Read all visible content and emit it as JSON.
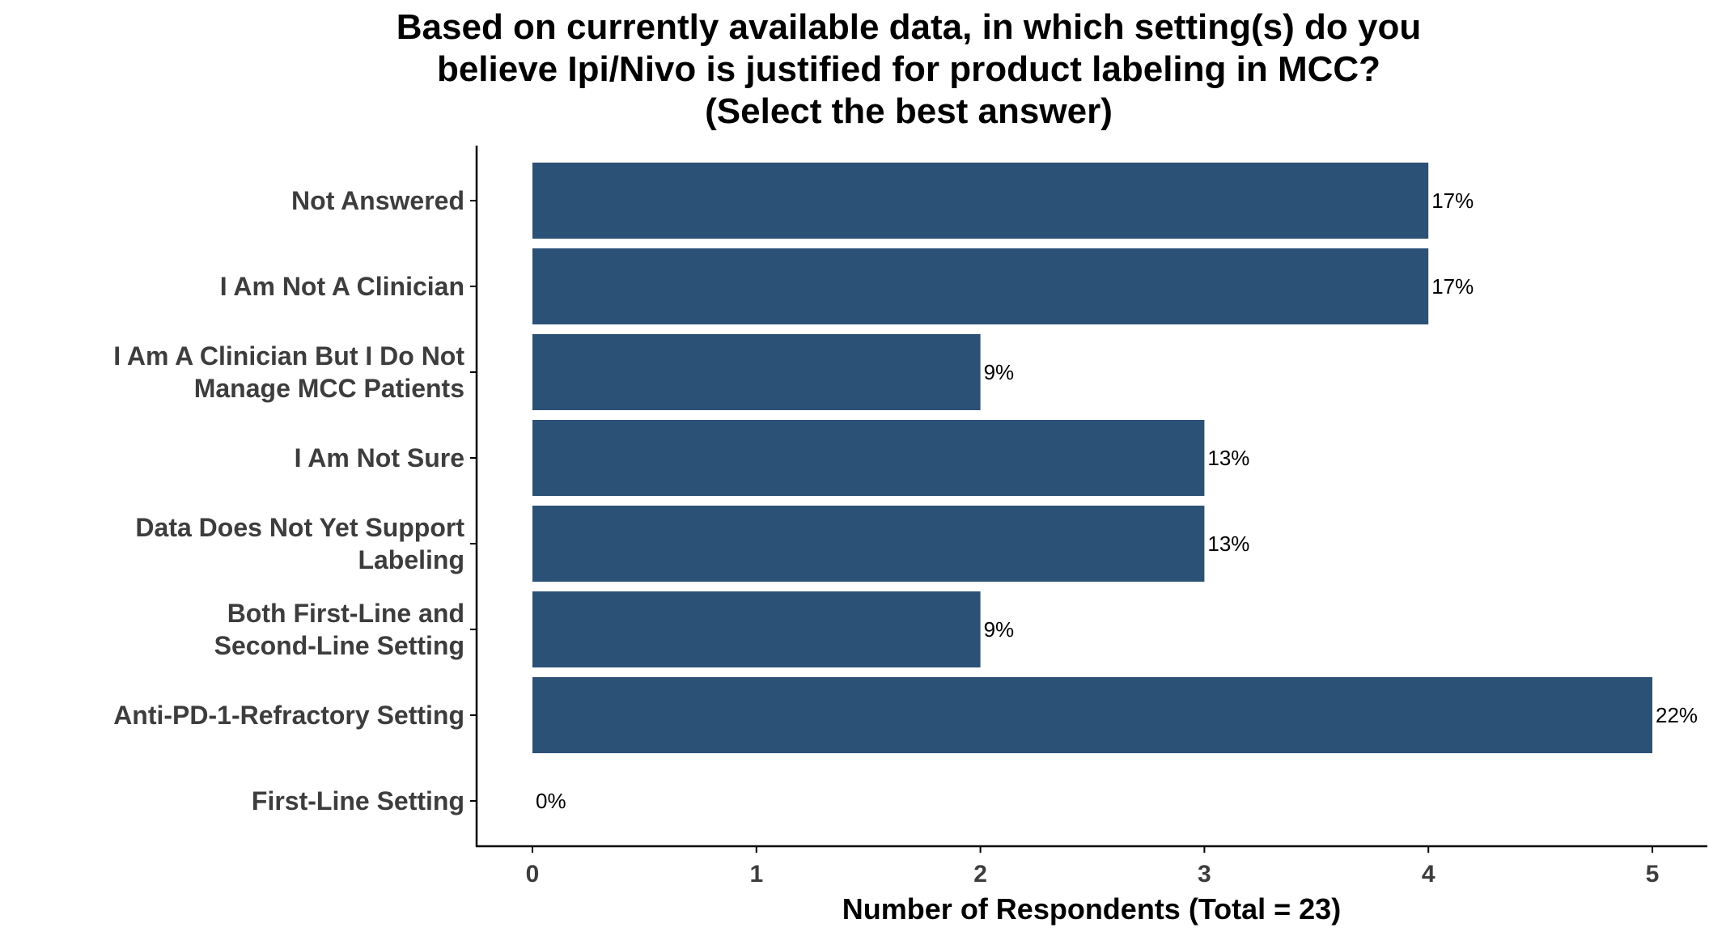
{
  "chart_data": {
    "type": "bar",
    "orientation": "horizontal",
    "title": "Based on currently available data, in which setting(s) do you believe Ipi/Nivo is justified for product labeling in MCC? (Select the best answer)",
    "title_lines": [
      "Based on currently available data, in which setting(s) do you",
      "believe Ipi/Nivo is justified for product labeling in MCC?",
      "(Select the best answer)"
    ],
    "xlabel": "Number of Respondents (Total = 23)",
    "ylabel": "",
    "xlim": [
      0,
      5
    ],
    "x_ticks": [
      "0",
      "1",
      "2",
      "3",
      "4",
      "5"
    ],
    "categories": [
      "Not Answered",
      "I Am Not A Clinician",
      "I Am A Clinician But I Do Not Manage MCC Patients",
      "I Am Not Sure",
      "Data Does Not Yet Support Labeling",
      "Both First-Line and Second-Line Setting",
      "Anti-PD-1-Refractory Setting",
      "First-Line Setting"
    ],
    "category_lines": [
      [
        "Not Answered"
      ],
      [
        "I Am Not A Clinician"
      ],
      [
        "I Am A Clinician But I Do Not",
        "Manage MCC Patients"
      ],
      [
        "I Am Not Sure"
      ],
      [
        "Data Does Not Yet Support",
        "Labeling"
      ],
      [
        "Both First-Line and",
        "Second-Line Setting"
      ],
      [
        "Anti-PD-1-Refractory Setting"
      ],
      [
        "First-Line Setting"
      ]
    ],
    "values": [
      4,
      4,
      2,
      3,
      3,
      2,
      5,
      0
    ],
    "data_labels": [
      "17%",
      "17%",
      "9%",
      "13%",
      "13%",
      "9%",
      "22%",
      "0%"
    ],
    "bar_color": "#2c5177",
    "grid": false,
    "legend": "none"
  }
}
